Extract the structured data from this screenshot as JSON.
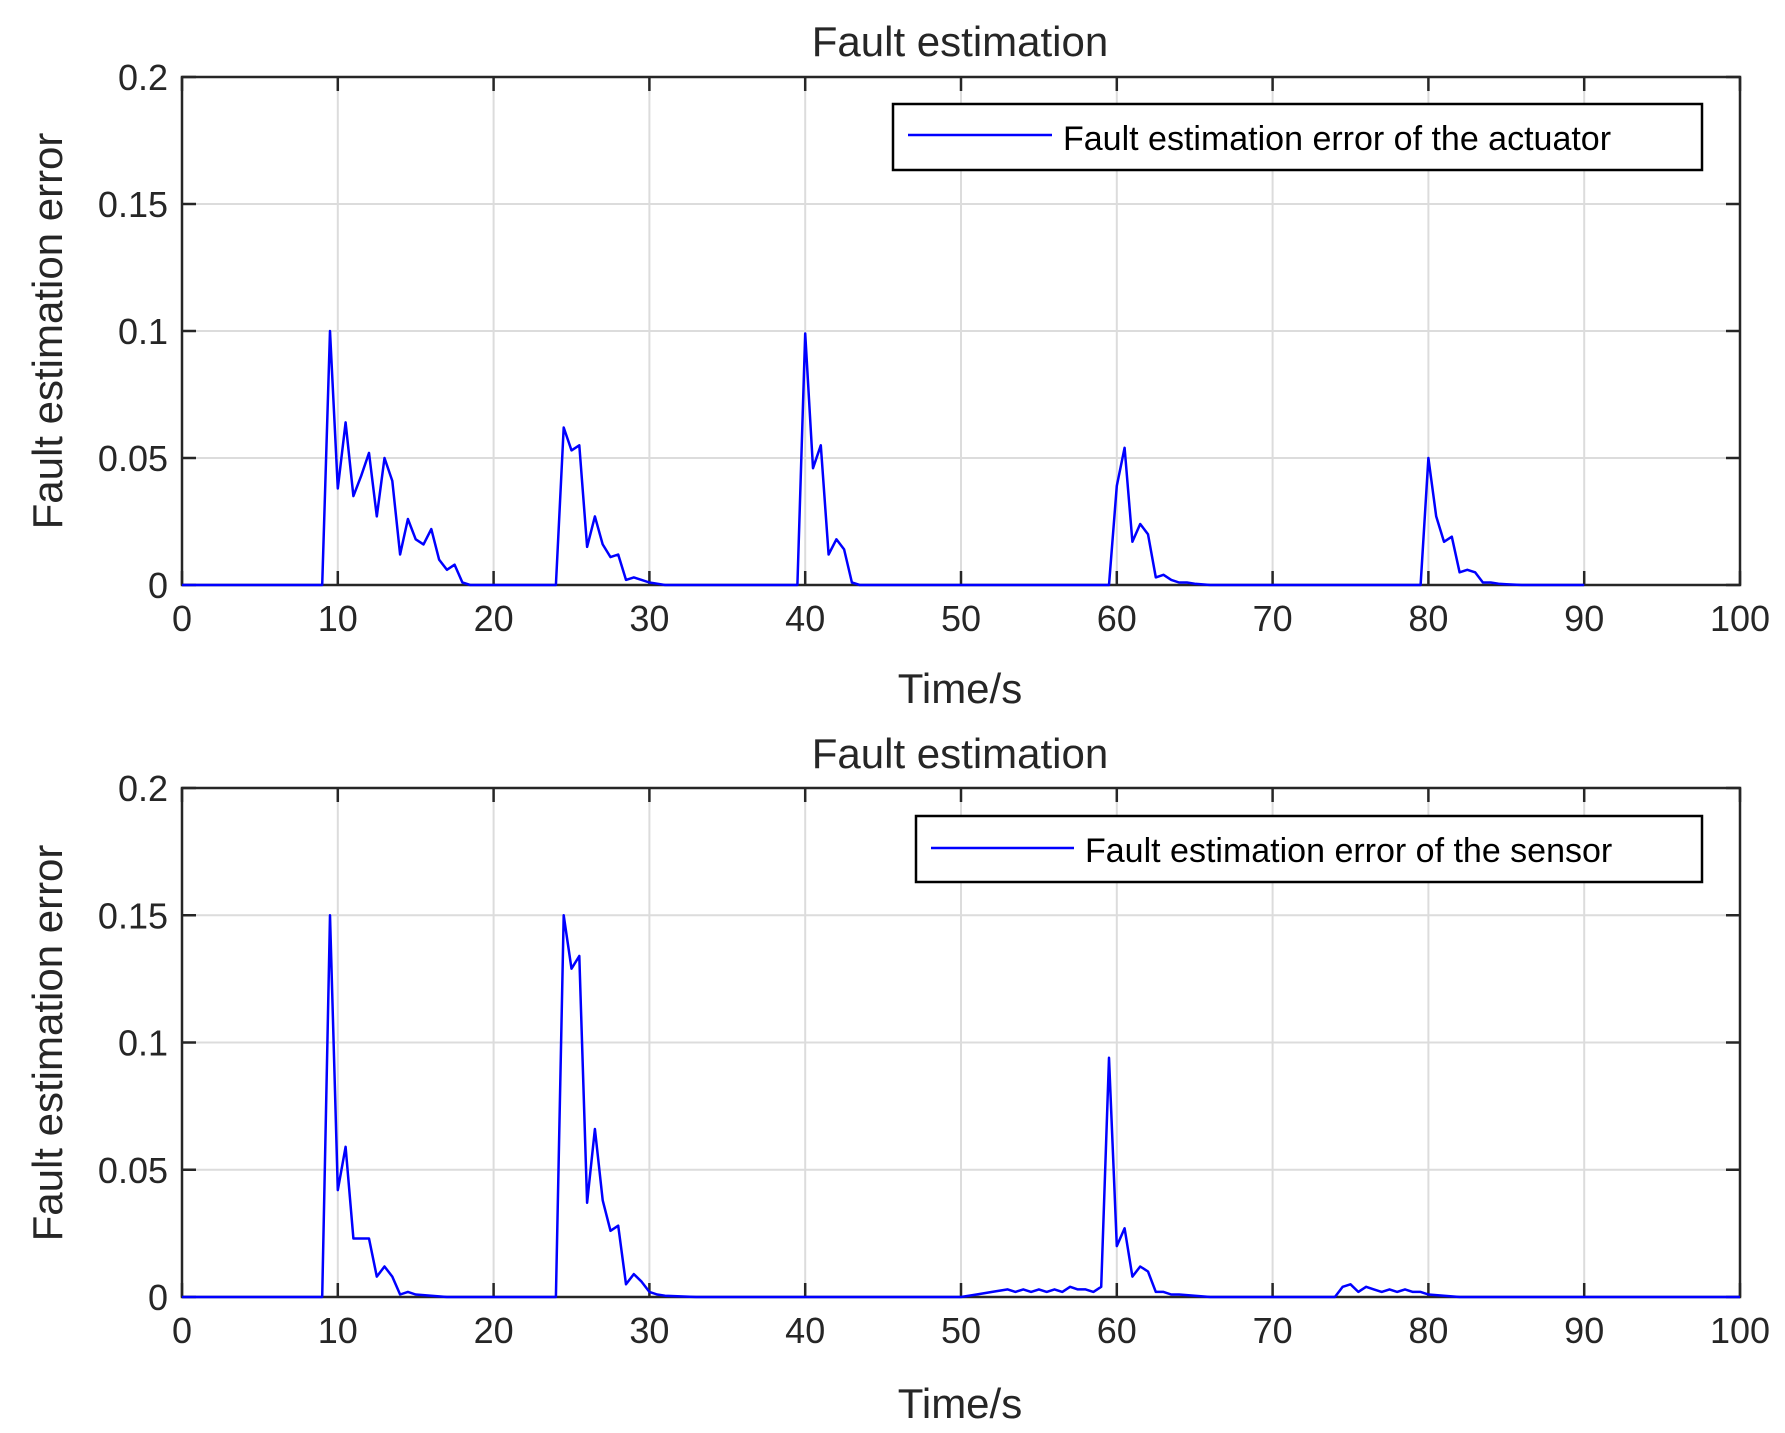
{
  "chart_data": [
    {
      "type": "line",
      "title": "Fault estimation",
      "xlabel": "Time/s",
      "ylabel": "Fault estimation error",
      "xlim": [
        0,
        100
      ],
      "ylim": [
        0,
        0.2
      ],
      "xticks": [
        0,
        10,
        20,
        30,
        40,
        50,
        60,
        70,
        80,
        90,
        100
      ],
      "xtick_labels": [
        "0",
        "10",
        "20",
        "30",
        "40",
        "50",
        "60",
        "70",
        "80",
        "90",
        "100"
      ],
      "yticks": [
        0,
        0.05,
        0.1,
        0.15,
        0.2
      ],
      "ytick_labels": [
        "0",
        "0.05",
        "0.1",
        "0.15",
        "0.2"
      ],
      "grid": true,
      "legend": "top-right",
      "series": [
        {
          "name": "Fault estimation error of the actuator",
          "color": "#0000ff",
          "x": [
            0,
            9,
            9.5,
            10,
            10.5,
            11,
            11.5,
            12,
            12.5,
            13,
            13.5,
            14,
            14.5,
            15,
            15.5,
            16,
            16.5,
            17,
            17.5,
            18,
            18.5,
            19,
            24,
            24.5,
            25,
            25.5,
            26,
            26.5,
            27,
            27.5,
            28,
            28.5,
            29,
            29.5,
            30,
            30.5,
            31,
            32,
            33,
            39.5,
            40,
            40.5,
            41,
            41.5,
            42,
            42.5,
            43,
            43.5,
            59.5,
            60,
            60.5,
            61,
            61.5,
            62,
            62.5,
            63,
            63.5,
            64,
            64.5,
            65,
            66,
            79.5,
            80,
            80.5,
            81,
            81.5,
            82,
            82.5,
            83,
            83.5,
            84,
            84.5,
            85,
            86,
            90
          ],
          "y": [
            0,
            0,
            0.1,
            0.038,
            0.064,
            0.035,
            0.043,
            0.052,
            0.027,
            0.05,
            0.041,
            0.012,
            0.026,
            0.018,
            0.016,
            0.022,
            0.01,
            0.006,
            0.008,
            0.001,
            0,
            0,
            0,
            0.062,
            0.053,
            0.055,
            0.015,
            0.027,
            0.016,
            0.011,
            0.012,
            0.002,
            0.003,
            0.002,
            0.001,
            0.0005,
            0,
            0,
            0,
            0,
            0.099,
            0.046,
            0.055,
            0.012,
            0.018,
            0.014,
            0.001,
            0,
            0,
            0.039,
            0.054,
            0.017,
            0.024,
            0.02,
            0.003,
            0.004,
            0.002,
            0.001,
            0.001,
            0.0005,
            0,
            0,
            0.05,
            0.027,
            0.017,
            0.019,
            0.005,
            0.006,
            0.005,
            0.001,
            0.001,
            0.0005,
            0.0003,
            0,
            0
          ]
        }
      ]
    },
    {
      "type": "line",
      "title": "Fault estimation",
      "xlabel": "Time/s",
      "ylabel": "Fault estimation error",
      "xlim": [
        0,
        100
      ],
      "ylim": [
        0,
        0.2
      ],
      "xticks": [
        0,
        10,
        20,
        30,
        40,
        50,
        60,
        70,
        80,
        90,
        100
      ],
      "xtick_labels": [
        "0",
        "10",
        "20",
        "30",
        "40",
        "50",
        "60",
        "70",
        "80",
        "90",
        "100"
      ],
      "yticks": [
        0,
        0.05,
        0.1,
        0.15,
        0.2
      ],
      "ytick_labels": [
        "0",
        "0.05",
        "0.1",
        "0.15",
        "0.2"
      ],
      "grid": true,
      "legend": "top-right",
      "series": [
        {
          "name": "Fault estimation error of the sensor",
          "color": "#0000ff",
          "x": [
            0,
            9,
            9.5,
            10,
            10.5,
            11,
            11.5,
            12,
            12.5,
            13,
            13.5,
            14,
            14.5,
            15,
            16,
            17,
            18,
            24,
            24.5,
            25,
            25.5,
            26,
            26.5,
            27,
            27.5,
            28,
            28.5,
            29,
            29.5,
            30,
            30.5,
            31,
            33,
            50,
            51,
            52,
            53,
            53.5,
            54,
            54.5,
            55,
            55.5,
            56,
            56.5,
            57,
            57.5,
            58,
            58.5,
            59,
            59.5,
            60,
            60.5,
            61,
            61.5,
            62,
            62.5,
            63,
            63.5,
            64,
            65,
            66,
            74,
            74.5,
            75,
            75.5,
            76,
            76.5,
            77,
            77.5,
            78,
            78.5,
            79,
            79.5,
            80,
            81,
            82,
            100
          ],
          "y": [
            0,
            0,
            0.15,
            0.042,
            0.059,
            0.023,
            0.023,
            0.023,
            0.008,
            0.012,
            0.008,
            0.001,
            0.002,
            0.001,
            0.0005,
            0,
            0,
            0,
            0.15,
            0.129,
            0.134,
            0.037,
            0.066,
            0.038,
            0.026,
            0.028,
            0.005,
            0.009,
            0.006,
            0.002,
            0.001,
            0.0005,
            0,
            0,
            0.001,
            0.002,
            0.003,
            0.002,
            0.003,
            0.002,
            0.003,
            0.002,
            0.003,
            0.002,
            0.004,
            0.003,
            0.003,
            0.002,
            0.004,
            0.094,
            0.02,
            0.027,
            0.008,
            0.012,
            0.01,
            0.002,
            0.002,
            0.001,
            0.001,
            0.0005,
            0,
            0,
            0.004,
            0.005,
            0.002,
            0.004,
            0.003,
            0.002,
            0.003,
            0.002,
            0.003,
            0.002,
            0.002,
            0.001,
            0.0005,
            0,
            0
          ]
        }
      ]
    }
  ]
}
